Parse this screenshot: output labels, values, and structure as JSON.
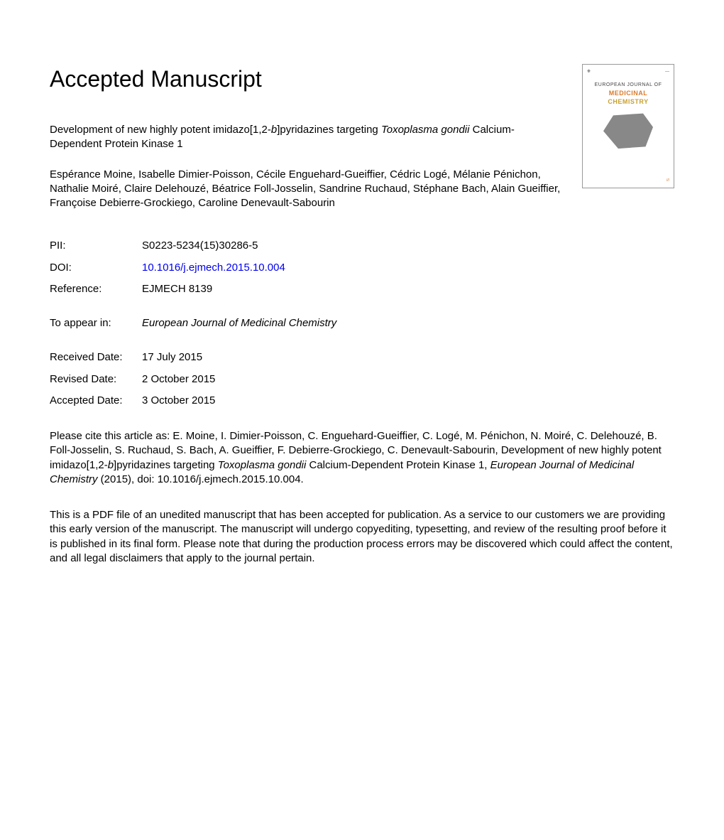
{
  "heading": "Accepted Manuscript",
  "title": {
    "part1": "Development of new highly potent imidazo[1,2-",
    "part2_italic": "b",
    "part3": "]pyridazines targeting ",
    "part4_italic": "Toxoplasma gondii",
    "part5": " Calcium-Dependent Protein Kinase 1"
  },
  "authors": "Espérance Moine, Isabelle Dimier-Poisson, Cécile Enguehard-Gueiffier, Cédric Logé, Mélanie Pénichon, Nathalie Moiré, Claire Delehouzé, Béatrice Foll-Josselin, Sandrine Ruchaud, Stéphane Bach, Alain Gueiffier, Françoise Debierre-Grockiego, Caroline Denevault-Sabourin",
  "meta": {
    "pii_label": "PII:",
    "pii_value": "S0223-5234(15)30286-5",
    "doi_label": "DOI:",
    "doi_value": "10.1016/j.ejmech.2015.10.004",
    "reference_label": "Reference:",
    "reference_value": "EJMECH 8139",
    "appear_label": "To appear in:",
    "appear_value": "European Journal of Medicinal Chemistry",
    "received_label": "Received Date:",
    "received_value": "17 July 2015",
    "revised_label": "Revised Date:",
    "revised_value": "2 October 2015",
    "accepted_label": "Accepted Date:",
    "accepted_value": "3 October 2015"
  },
  "citation": {
    "part1": "Please cite this article as: E. Moine, I. Dimier-Poisson, C. Enguehard-Gueiffier, C. Logé, M. Pénichon, N. Moiré, C. Delehouzé, B. Foll-Josselin, S. Ruchaud, S. Bach, A. Gueiffier, F. Debierre-Grockiego, C. Denevault-Sabourin, Development of new highly potent imidazo[1,2-",
    "part2_italic": "b",
    "part3": "]pyridazines targeting ",
    "part4_italic": "Toxoplasma gondii",
    "part5": " Calcium-Dependent Protein Kinase 1, ",
    "part6_italic": "European Journal of Medicinal Chemistry",
    "part7": " (2015), doi: 10.1016/j.ejmech.2015.10.004."
  },
  "disclaimer": "This is a PDF file of an unedited manuscript that has been accepted for publication. As a service to our customers we are providing this early version of the manuscript. The manuscript will undergo copyediting, typesetting, and review of the resulting proof before it is published in its final form. Please note that during the production process errors may be discovered which could affect the content, and all legal disclaimers that apply to the journal pertain.",
  "cover": {
    "journal_line1": "EUROPEAN JOURNAL OF",
    "journal_line2": "MEDICINAL",
    "journal_line3": "CHEMISTRY"
  }
}
